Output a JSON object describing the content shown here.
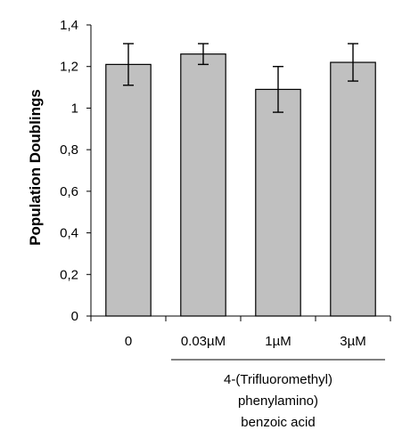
{
  "chart_data": {
    "type": "bar",
    "ylabel": "Population Doublings",
    "xlabel": "",
    "ylim": [
      0,
      1.4
    ],
    "yticks": [
      "0",
      "0,2",
      "0,4",
      "0,6",
      "0,8",
      "1",
      "1,2",
      "1,4"
    ],
    "categories": [
      "0",
      "0.03µM",
      "1µM",
      "3µM"
    ],
    "values": [
      1.21,
      1.26,
      1.09,
      1.22
    ],
    "errors": [
      0.1,
      0.05,
      0.11,
      0.09
    ],
    "bar_color": "#c0c0c0",
    "bar_edge_color": "#000000",
    "grid": false,
    "group_label": {
      "lines": [
        "4-(Trifluoromethyl)",
        "phenylamino)",
        "benzoic acid"
      ],
      "spans_categories": [
        "0.03µM",
        "1µM",
        "3µM"
      ]
    }
  }
}
